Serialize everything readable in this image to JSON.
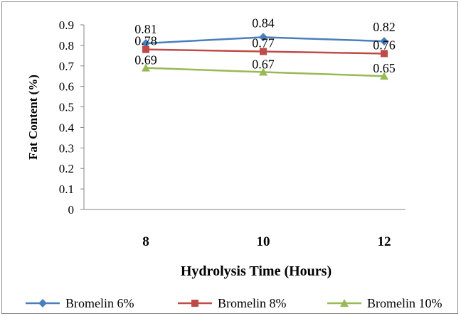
{
  "chart_data": {
    "type": "line",
    "title": "",
    "xlabel": "Hydrolysis Time (Hours)",
    "ylabel": "Fat Content (%)",
    "categories": [
      "8",
      "10",
      "12"
    ],
    "ylim": [
      0,
      0.9
    ],
    "yticks": [
      "0",
      "0.1",
      "0.2",
      "0.3",
      "0.4",
      "0.5",
      "0.6",
      "0.7",
      "0.8",
      "0.9"
    ],
    "grid": false,
    "legend_position": "bottom",
    "series": [
      {
        "name": "Bromelin 6%",
        "values": [
          0.81,
          0.84,
          0.82
        ],
        "labels": [
          "0.81",
          "0.84",
          "0.82"
        ],
        "color": "#4a7ebb",
        "marker": "diamond"
      },
      {
        "name": "Bromelin 8%",
        "values": [
          0.78,
          0.77,
          0.76
        ],
        "labels": [
          "0.78",
          "0.77",
          "0.76"
        ],
        "color": "#be4b48",
        "marker": "square"
      },
      {
        "name": "Bromelin 10%",
        "values": [
          0.69,
          0.67,
          0.65
        ],
        "labels": [
          "0.69",
          "0.67",
          "0.65"
        ],
        "color": "#98b954",
        "marker": "triangle"
      }
    ]
  }
}
